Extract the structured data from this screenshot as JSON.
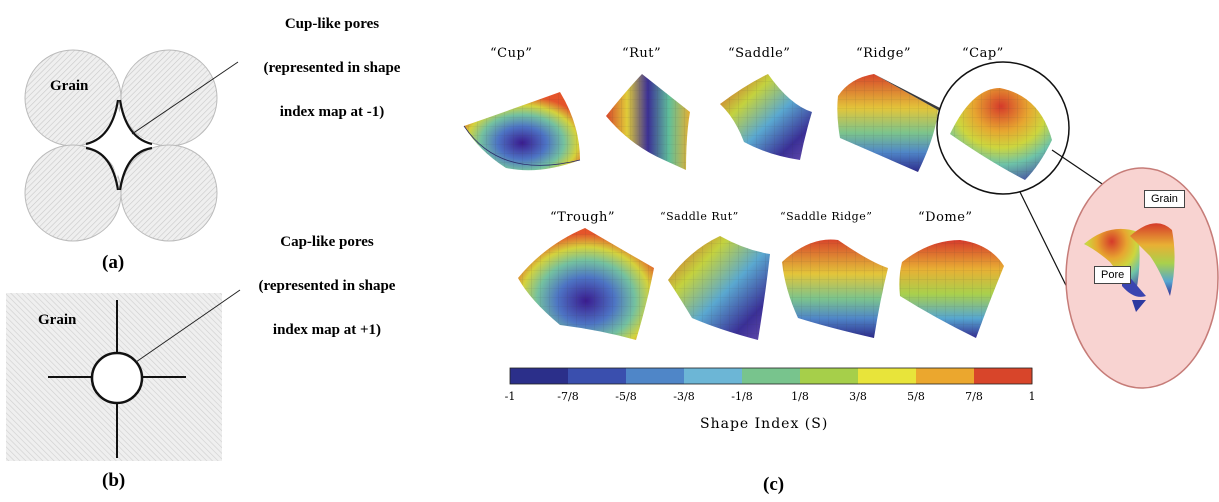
{
  "panel_a": {
    "grain_label": "Grain",
    "annotation": [
      "Cup-like pores",
      "(represented in shape",
      "index map at -1)"
    ],
    "panel_label": "(a)"
  },
  "panel_b": {
    "grain_label": "Grain",
    "annotation": [
      "Cap-like pores",
      "(represented in shape",
      "index map at +1)"
    ],
    "panel_label": "(b)"
  },
  "panel_c": {
    "panel_label": "(c)",
    "top_shapes": [
      "“Cup”",
      "“Rut”",
      "“Saddle”",
      "“Ridge”",
      "“Cap”"
    ],
    "bottom_shapes": [
      "“Trough”",
      "“Saddle Rut”",
      "“Saddle Ridge”",
      "“Dome”"
    ],
    "inset_labels": {
      "grain": "Grain",
      "pore": "Pore"
    },
    "colorbar": {
      "ticks": [
        "-1",
        "-7/8",
        "-5/8",
        "-3/8",
        "-1/8",
        "1/8",
        "3/8",
        "5/8",
        "7/8",
        "1"
      ],
      "colors": [
        "#2b2f8a",
        "#3a4fae",
        "#4f86c8",
        "#6cb6d6",
        "#78c48d",
        "#a6cf4a",
        "#e8e43a",
        "#eba72e",
        "#d8452a"
      ],
      "title": "Shape Index (S)"
    }
  }
}
